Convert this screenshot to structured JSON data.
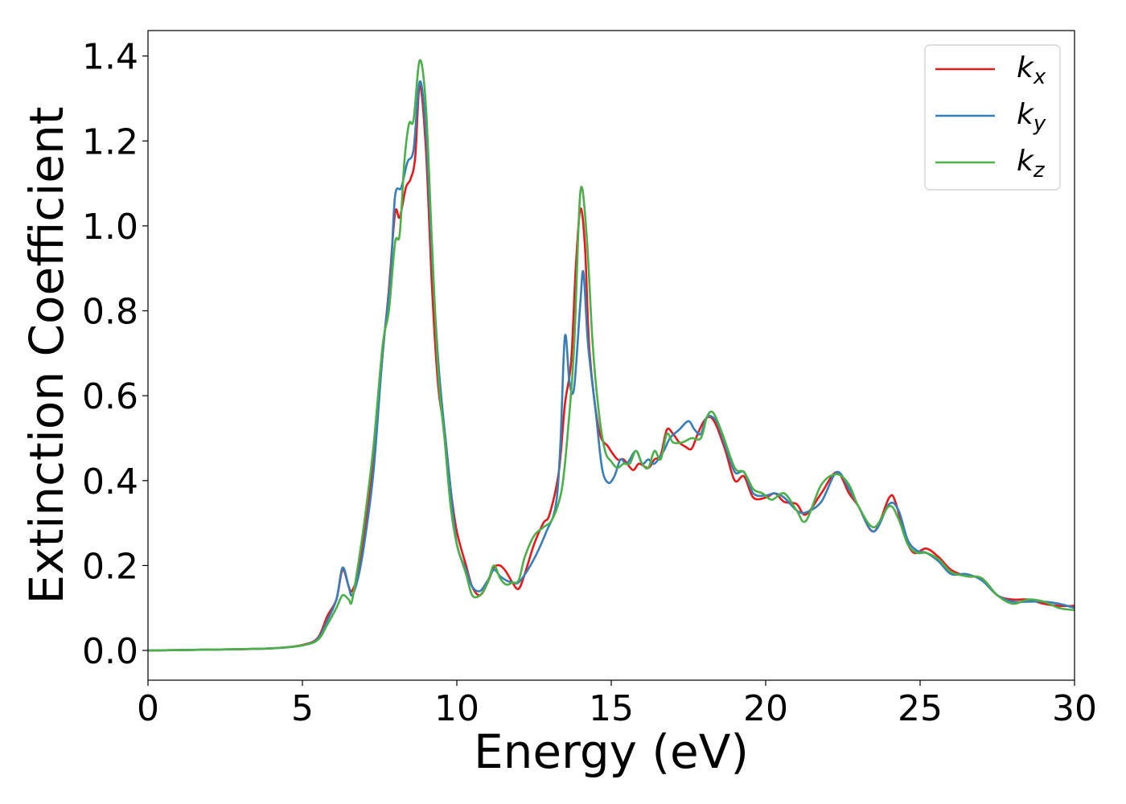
{
  "chart_data": {
    "type": "line",
    "xlabel": "Energy (eV)",
    "ylabel": "Extinction Coefficient",
    "xlim": [
      0,
      30
    ],
    "ylim": [
      -0.07,
      1.46
    ],
    "xticks": [
      0,
      5,
      10,
      15,
      20,
      25,
      30
    ],
    "xtick_labels": [
      "0",
      "5",
      "10",
      "15",
      "20",
      "25",
      "30"
    ],
    "yticks": [
      0.0,
      0.2,
      0.4,
      0.6,
      0.8,
      1.0,
      1.2,
      1.4
    ],
    "ytick_labels": [
      "0.0",
      "0.2",
      "0.4",
      "0.6",
      "0.8",
      "1.0",
      "1.2",
      "1.4"
    ],
    "grid": false,
    "legend_position": "top-right",
    "series": [
      {
        "name": "k",
        "subscript": "x",
        "color": "#e41a1c",
        "points": [
          [
            0,
            0.0
          ],
          [
            2,
            0.002
          ],
          [
            4,
            0.005
          ],
          [
            5,
            0.013
          ],
          [
            5.5,
            0.03
          ],
          [
            5.8,
            0.08
          ],
          [
            6.1,
            0.12
          ],
          [
            6.3,
            0.19
          ],
          [
            6.5,
            0.15
          ],
          [
            6.6,
            0.14
          ],
          [
            6.8,
            0.18
          ],
          [
            7.0,
            0.27
          ],
          [
            7.3,
            0.45
          ],
          [
            7.6,
            0.7
          ],
          [
            7.8,
            0.85
          ],
          [
            8.0,
            1.03
          ],
          [
            8.15,
            1.02
          ],
          [
            8.35,
            1.09
          ],
          [
            8.5,
            1.11
          ],
          [
            8.65,
            1.16
          ],
          [
            8.8,
            1.33
          ],
          [
            9.0,
            1.18
          ],
          [
            9.2,
            0.85
          ],
          [
            9.4,
            0.62
          ],
          [
            9.6,
            0.52
          ],
          [
            9.8,
            0.38
          ],
          [
            10.0,
            0.28
          ],
          [
            10.3,
            0.2
          ],
          [
            10.5,
            0.15
          ],
          [
            10.75,
            0.13
          ],
          [
            11.0,
            0.16
          ],
          [
            11.2,
            0.195
          ],
          [
            11.4,
            0.2
          ],
          [
            11.6,
            0.185
          ],
          [
            11.8,
            0.16
          ],
          [
            12.0,
            0.145
          ],
          [
            12.2,
            0.18
          ],
          [
            12.5,
            0.25
          ],
          [
            12.8,
            0.3
          ],
          [
            13.0,
            0.32
          ],
          [
            13.3,
            0.42
          ],
          [
            13.5,
            0.58
          ],
          [
            13.7,
            0.68
          ],
          [
            13.85,
            0.9
          ],
          [
            14.0,
            1.04
          ],
          [
            14.15,
            0.95
          ],
          [
            14.3,
            0.7
          ],
          [
            14.6,
            0.52
          ],
          [
            14.9,
            0.48
          ],
          [
            15.2,
            0.45
          ],
          [
            15.4,
            0.45
          ],
          [
            15.7,
            0.425
          ],
          [
            15.9,
            0.44
          ],
          [
            16.2,
            0.43
          ],
          [
            16.4,
            0.45
          ],
          [
            16.6,
            0.46
          ],
          [
            16.8,
            0.52
          ],
          [
            17.0,
            0.51
          ],
          [
            17.2,
            0.49
          ],
          [
            17.4,
            0.48
          ],
          [
            17.6,
            0.475
          ],
          [
            17.8,
            0.51
          ],
          [
            18.0,
            0.54
          ],
          [
            18.2,
            0.55
          ],
          [
            18.4,
            0.53
          ],
          [
            18.7,
            0.47
          ],
          [
            19.0,
            0.4
          ],
          [
            19.3,
            0.41
          ],
          [
            19.6,
            0.36
          ],
          [
            20.0,
            0.36
          ],
          [
            20.3,
            0.37
          ],
          [
            20.6,
            0.35
          ],
          [
            21.0,
            0.345
          ],
          [
            21.3,
            0.32
          ],
          [
            21.8,
            0.37
          ],
          [
            22.3,
            0.42
          ],
          [
            22.7,
            0.37
          ],
          [
            23.0,
            0.34
          ],
          [
            23.5,
            0.28
          ],
          [
            24.0,
            0.36
          ],
          [
            24.2,
            0.35
          ],
          [
            24.5,
            0.27
          ],
          [
            24.8,
            0.23
          ],
          [
            25.2,
            0.24
          ],
          [
            25.6,
            0.22
          ],
          [
            26.0,
            0.19
          ],
          [
            26.5,
            0.175
          ],
          [
            27.0,
            0.17
          ],
          [
            27.5,
            0.13
          ],
          [
            28.0,
            0.12
          ],
          [
            28.5,
            0.12
          ],
          [
            29.0,
            0.11
          ],
          [
            29.5,
            0.105
          ],
          [
            30.0,
            0.105
          ]
        ]
      },
      {
        "name": "k",
        "subscript": "y",
        "color": "#377eb8",
        "points": [
          [
            0,
            0.0
          ],
          [
            2,
            0.002
          ],
          [
            4,
            0.005
          ],
          [
            5,
            0.012
          ],
          [
            5.5,
            0.028
          ],
          [
            5.8,
            0.07
          ],
          [
            6.1,
            0.12
          ],
          [
            6.3,
            0.195
          ],
          [
            6.5,
            0.15
          ],
          [
            6.6,
            0.13
          ],
          [
            6.8,
            0.17
          ],
          [
            7.0,
            0.25
          ],
          [
            7.3,
            0.42
          ],
          [
            7.6,
            0.7
          ],
          [
            7.85,
            0.88
          ],
          [
            8.0,
            1.07
          ],
          [
            8.2,
            1.09
          ],
          [
            8.4,
            1.15
          ],
          [
            8.6,
            1.18
          ],
          [
            8.8,
            1.34
          ],
          [
            9.0,
            1.22
          ],
          [
            9.2,
            0.92
          ],
          [
            9.4,
            0.68
          ],
          [
            9.6,
            0.52
          ],
          [
            9.8,
            0.38
          ],
          [
            10.0,
            0.25
          ],
          [
            10.3,
            0.19
          ],
          [
            10.5,
            0.15
          ],
          [
            10.75,
            0.14
          ],
          [
            11.0,
            0.165
          ],
          [
            11.2,
            0.19
          ],
          [
            11.4,
            0.175
          ],
          [
            11.6,
            0.165
          ],
          [
            11.8,
            0.16
          ],
          [
            12.0,
            0.16
          ],
          [
            12.3,
            0.19
          ],
          [
            12.6,
            0.23
          ],
          [
            12.9,
            0.28
          ],
          [
            13.2,
            0.34
          ],
          [
            13.35,
            0.48
          ],
          [
            13.5,
            0.74
          ],
          [
            13.65,
            0.63
          ],
          [
            13.8,
            0.62
          ],
          [
            14.0,
            0.82
          ],
          [
            14.1,
            0.89
          ],
          [
            14.25,
            0.72
          ],
          [
            14.5,
            0.56
          ],
          [
            14.7,
            0.43
          ],
          [
            14.9,
            0.395
          ],
          [
            15.1,
            0.41
          ],
          [
            15.3,
            0.45
          ],
          [
            15.5,
            0.44
          ],
          [
            15.8,
            0.47
          ],
          [
            16.0,
            0.44
          ],
          [
            16.2,
            0.45
          ],
          [
            16.4,
            0.44
          ],
          [
            16.7,
            0.47
          ],
          [
            16.9,
            0.5
          ],
          [
            17.2,
            0.52
          ],
          [
            17.5,
            0.54
          ],
          [
            17.7,
            0.52
          ],
          [
            17.9,
            0.51
          ],
          [
            18.1,
            0.55
          ],
          [
            18.4,
            0.54
          ],
          [
            18.7,
            0.48
          ],
          [
            19.0,
            0.42
          ],
          [
            19.3,
            0.42
          ],
          [
            19.6,
            0.37
          ],
          [
            20.0,
            0.365
          ],
          [
            20.3,
            0.37
          ],
          [
            20.6,
            0.36
          ],
          [
            21.0,
            0.33
          ],
          [
            21.3,
            0.325
          ],
          [
            21.8,
            0.35
          ],
          [
            22.3,
            0.42
          ],
          [
            22.7,
            0.38
          ],
          [
            23.0,
            0.34
          ],
          [
            23.5,
            0.28
          ],
          [
            24.0,
            0.345
          ],
          [
            24.3,
            0.33
          ],
          [
            24.6,
            0.26
          ],
          [
            24.9,
            0.235
          ],
          [
            25.2,
            0.23
          ],
          [
            25.6,
            0.21
          ],
          [
            26.0,
            0.18
          ],
          [
            26.5,
            0.18
          ],
          [
            27.0,
            0.165
          ],
          [
            27.5,
            0.13
          ],
          [
            28.0,
            0.115
          ],
          [
            28.5,
            0.115
          ],
          [
            29.0,
            0.115
          ],
          [
            29.5,
            0.11
          ],
          [
            30.0,
            0.1
          ]
        ]
      },
      {
        "name": "k",
        "subscript": "z",
        "color": "#4daf4a",
        "points": [
          [
            0,
            0.0
          ],
          [
            2,
            0.002
          ],
          [
            4,
            0.005
          ],
          [
            5,
            0.012
          ],
          [
            5.5,
            0.025
          ],
          [
            5.8,
            0.06
          ],
          [
            6.1,
            0.1
          ],
          [
            6.3,
            0.13
          ],
          [
            6.5,
            0.12
          ],
          [
            6.6,
            0.115
          ],
          [
            6.8,
            0.2
          ],
          [
            7.0,
            0.3
          ],
          [
            7.3,
            0.48
          ],
          [
            7.6,
            0.72
          ],
          [
            7.8,
            0.8
          ],
          [
            8.0,
            0.96
          ],
          [
            8.15,
            0.98
          ],
          [
            8.3,
            1.15
          ],
          [
            8.45,
            1.24
          ],
          [
            8.6,
            1.25
          ],
          [
            8.8,
            1.39
          ],
          [
            9.0,
            1.28
          ],
          [
            9.2,
            0.95
          ],
          [
            9.4,
            0.65
          ],
          [
            9.6,
            0.5
          ],
          [
            9.8,
            0.34
          ],
          [
            10.0,
            0.25
          ],
          [
            10.3,
            0.18
          ],
          [
            10.5,
            0.13
          ],
          [
            10.75,
            0.13
          ],
          [
            11.0,
            0.16
          ],
          [
            11.2,
            0.2
          ],
          [
            11.4,
            0.17
          ],
          [
            11.6,
            0.155
          ],
          [
            11.8,
            0.16
          ],
          [
            12.0,
            0.165
          ],
          [
            12.2,
            0.22
          ],
          [
            12.5,
            0.27
          ],
          [
            12.8,
            0.29
          ],
          [
            13.1,
            0.31
          ],
          [
            13.4,
            0.38
          ],
          [
            13.6,
            0.52
          ],
          [
            13.8,
            0.72
          ],
          [
            14.0,
            1.08
          ],
          [
            14.2,
            0.98
          ],
          [
            14.4,
            0.72
          ],
          [
            14.6,
            0.56
          ],
          [
            14.8,
            0.47
          ],
          [
            15.0,
            0.445
          ],
          [
            15.2,
            0.43
          ],
          [
            15.4,
            0.44
          ],
          [
            15.6,
            0.44
          ],
          [
            15.8,
            0.47
          ],
          [
            16.0,
            0.44
          ],
          [
            16.2,
            0.43
          ],
          [
            16.4,
            0.47
          ],
          [
            16.6,
            0.45
          ],
          [
            16.8,
            0.51
          ],
          [
            17.0,
            0.49
          ],
          [
            17.3,
            0.49
          ],
          [
            17.6,
            0.5
          ],
          [
            17.9,
            0.5
          ],
          [
            18.1,
            0.55
          ],
          [
            18.3,
            0.56
          ],
          [
            18.6,
            0.51
          ],
          [
            19.0,
            0.43
          ],
          [
            19.3,
            0.42
          ],
          [
            19.6,
            0.38
          ],
          [
            19.9,
            0.37
          ],
          [
            20.2,
            0.355
          ],
          [
            20.6,
            0.37
          ],
          [
            21.0,
            0.33
          ],
          [
            21.3,
            0.305
          ],
          [
            21.8,
            0.39
          ],
          [
            22.3,
            0.415
          ],
          [
            22.7,
            0.39
          ],
          [
            23.0,
            0.34
          ],
          [
            23.5,
            0.29
          ],
          [
            24.0,
            0.34
          ],
          [
            24.3,
            0.31
          ],
          [
            24.6,
            0.25
          ],
          [
            24.9,
            0.23
          ],
          [
            25.2,
            0.23
          ],
          [
            25.6,
            0.215
          ],
          [
            26.0,
            0.185
          ],
          [
            26.5,
            0.175
          ],
          [
            27.0,
            0.17
          ],
          [
            27.5,
            0.13
          ],
          [
            28.0,
            0.11
          ],
          [
            28.5,
            0.12
          ],
          [
            29.0,
            0.115
          ],
          [
            29.5,
            0.1
          ],
          [
            30.0,
            0.095
          ]
        ]
      }
    ]
  }
}
